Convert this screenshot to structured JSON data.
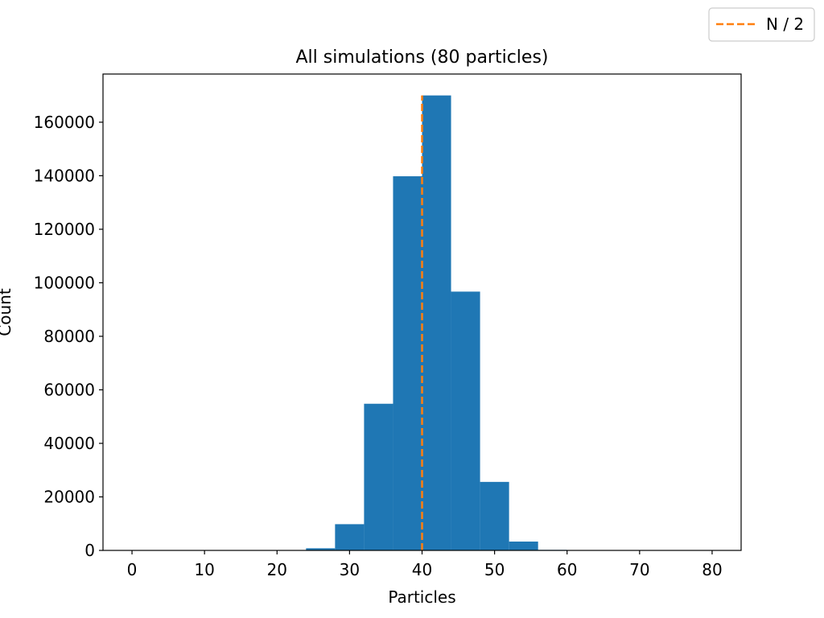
{
  "chart_data": {
    "type": "bar",
    "title": "All simulations (80 particles)",
    "xlabel": "Particles",
    "ylabel": "Count",
    "xlim": [
      -4,
      84
    ],
    "ylim": [
      0,
      178000
    ],
    "x_ticks": [
      0,
      10,
      20,
      30,
      40,
      50,
      60,
      70,
      80
    ],
    "y_ticks": [
      0,
      20000,
      40000,
      60000,
      80000,
      100000,
      120000,
      140000,
      160000
    ],
    "bin_edges": [
      0,
      4,
      8,
      12,
      16,
      20,
      24,
      28,
      32,
      36,
      40,
      44,
      48,
      52,
      56,
      60,
      64,
      68,
      72,
      76,
      80
    ],
    "series": [
      {
        "values": [
          0,
          0,
          0,
          0,
          0,
          100,
          800,
          9800,
          54800,
          139800,
          170000,
          96700,
          25600,
          3300,
          200,
          0,
          0,
          0,
          0,
          0
        ],
        "color": "#1f77b4"
      }
    ],
    "reference_line": {
      "label": "N / 2",
      "x": 40,
      "y_max": 170000,
      "color": "#ff7f0e",
      "style": "dashed"
    },
    "legend": {
      "placement": "top-right",
      "entries": [
        "N / 2"
      ]
    },
    "grid": false
  }
}
